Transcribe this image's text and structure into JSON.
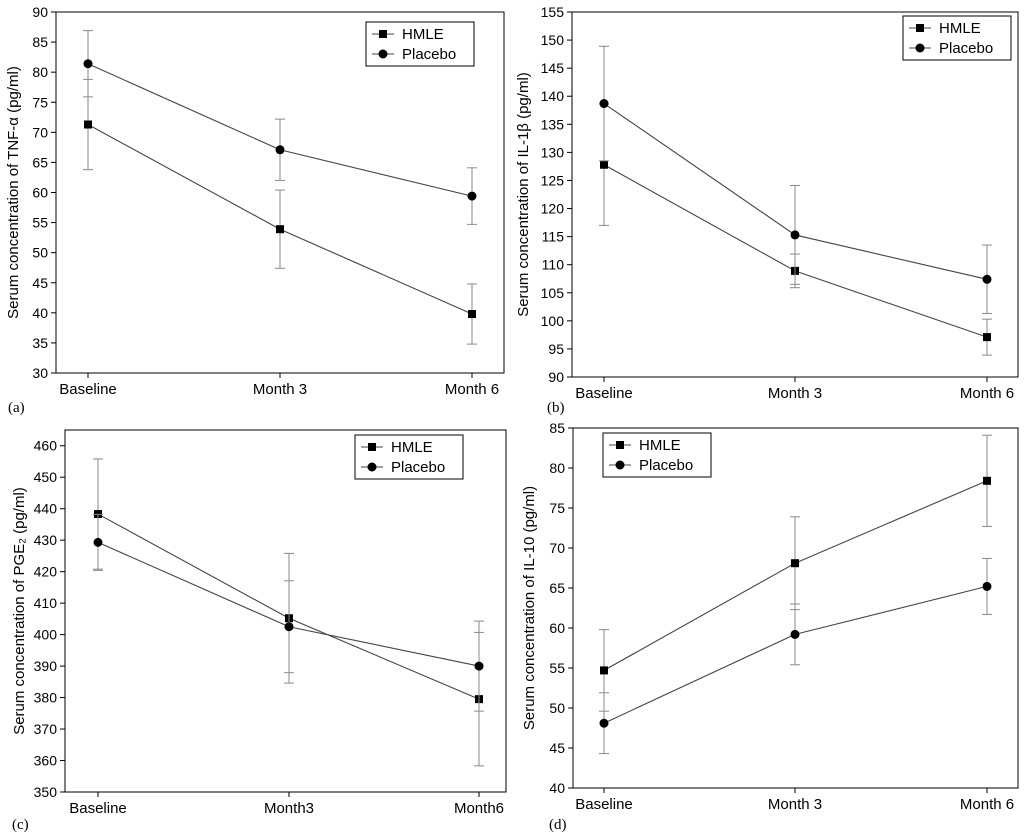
{
  "figure": {
    "colors": {
      "line": "#444444",
      "errorbar": "#8a8a8a",
      "axis": "#000000",
      "marker": "#000000"
    },
    "legend_labels": [
      "HMLE",
      "Placebo"
    ]
  },
  "chart_data": [
    {
      "type": "line",
      "panel": "(a)",
      "title": "",
      "xlabel": "",
      "ylabel": "Serum concentration of TNF-α (pg/ml)",
      "categories": [
        "Baseline",
        "Month 3",
        "Month 6"
      ],
      "ylim": [
        30,
        90
      ],
      "yticks": [
        30,
        35,
        40,
        45,
        50,
        55,
        60,
        65,
        70,
        75,
        80,
        85,
        90
      ],
      "legend_position": "top-right",
      "series": [
        {
          "name": "HMLE",
          "marker": "square",
          "values": [
            71.3,
            53.9,
            39.8
          ],
          "errors": [
            7.5,
            6.5,
            5.0
          ]
        },
        {
          "name": "Placebo",
          "marker": "circle",
          "values": [
            81.4,
            67.1,
            59.4
          ],
          "errors": [
            5.5,
            5.1,
            4.7
          ]
        }
      ]
    },
    {
      "type": "line",
      "panel": "(b)",
      "title": "",
      "xlabel": "",
      "ylabel": "Serum concentration of IL-1β (pg/ml)",
      "categories": [
        "Baseline",
        "Month 3",
        "Month 6"
      ],
      "ylim": [
        90,
        155
      ],
      "yticks": [
        90,
        95,
        100,
        105,
        110,
        115,
        120,
        125,
        130,
        135,
        140,
        145,
        150,
        155
      ],
      "legend_position": "top-right",
      "series": [
        {
          "name": "HMLE",
          "marker": "square",
          "values": [
            127.8,
            108.9,
            97.1
          ],
          "errors": [
            10.8,
            3.0,
            3.2
          ]
        },
        {
          "name": "Placebo",
          "marker": "circle",
          "values": [
            138.7,
            115.3,
            107.4
          ],
          "errors": [
            10.2,
            8.8,
            6.1
          ]
        }
      ]
    },
    {
      "type": "line",
      "panel": "(c)",
      "title": "",
      "xlabel": "",
      "ylabel": "Serum concentration of PGE₂ (pg/ml)",
      "categories": [
        "Baseline",
        "Month3",
        "Month6"
      ],
      "ylim": [
        350,
        465
      ],
      "yticks": [
        350,
        360,
        370,
        380,
        390,
        400,
        410,
        420,
        430,
        440,
        450,
        460
      ],
      "legend_position": "top-right",
      "series": [
        {
          "name": "HMLE",
          "marker": "square",
          "values": [
            438.3,
            405.2,
            379.5
          ],
          "errors": [
            17.5,
            20.6,
            21.2
          ]
        },
        {
          "name": "Placebo",
          "marker": "circle",
          "values": [
            429.3,
            402.5,
            390.0
          ],
          "errors": [
            8.9,
            14.6,
            14.3
          ]
        }
      ]
    },
    {
      "type": "line",
      "panel": "(d)",
      "title": "",
      "xlabel": "",
      "ylabel": "Serum concentration of IL-10 (pg/ml)",
      "categories": [
        "Baseline",
        "Month 3",
        "Month 6"
      ],
      "ylim": [
        40,
        85
      ],
      "yticks": [
        40,
        45,
        50,
        55,
        60,
        65,
        70,
        75,
        80,
        85
      ],
      "legend_position": "top-left",
      "series": [
        {
          "name": "HMLE",
          "marker": "square",
          "values": [
            54.7,
            68.1,
            78.4
          ],
          "errors": [
            5.1,
            5.8,
            5.7
          ]
        },
        {
          "name": "Placebo",
          "marker": "circle",
          "values": [
            48.1,
            59.2,
            65.2
          ],
          "errors": [
            3.8,
            3.8,
            3.5
          ]
        }
      ]
    }
  ]
}
